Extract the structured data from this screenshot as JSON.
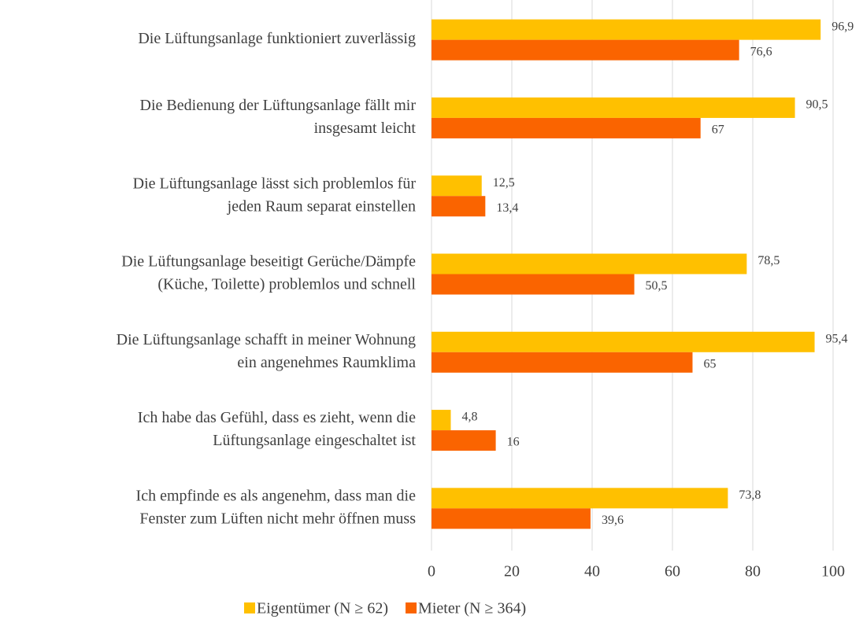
{
  "chart_data": {
    "type": "hbar",
    "categories": [
      [
        "Die Lüftungsanlage funktioniert zuverlässig"
      ],
      [
        "Die Bedienung der Lüftungsanlage fällt mir",
        "insgesamt leicht"
      ],
      [
        "Die Lüftungsanlage lässt sich problemlos für",
        "jeden Raum separat einstellen"
      ],
      [
        "Die Lüftungsanlage beseitigt Gerüche/Dämpfe",
        "(Küche, Toilette) problemlos und schnell"
      ],
      [
        "Die Lüftungsanlage schafft in meiner Wohnung",
        "ein angenehmes Raumklima"
      ],
      [
        "Ich habe das Gefühl, dass es zieht, wenn die",
        "Lüftungsanlage eingeschaltet ist"
      ],
      [
        "Ich empfinde es als angenehm, dass man die",
        "Fenster zum Lüften nicht mehr öffnen muss"
      ]
    ],
    "series": [
      {
        "name": "Eigentümer (N ≥ 62)",
        "color": "#ffc000",
        "values": [
          96.9,
          90.5,
          12.5,
          78.5,
          95.4,
          4.8,
          73.8
        ],
        "value_labels": [
          "96,9",
          "90,5",
          "12,5",
          "78,5",
          "95,4",
          "4,8",
          "73,8"
        ]
      },
      {
        "name": "Mieter (N ≥ 364)",
        "color": "#fa6400",
        "values": [
          76.6,
          67,
          13.4,
          50.5,
          65,
          16,
          39.6
        ],
        "value_labels": [
          "76,6",
          "67",
          "13,4",
          "50,5",
          "65",
          "16",
          "39,6"
        ]
      }
    ],
    "xlim": [
      0,
      100
    ],
    "xticks": [
      0,
      20,
      40,
      60,
      80,
      100
    ],
    "grid": true,
    "legend": "bottom"
  }
}
